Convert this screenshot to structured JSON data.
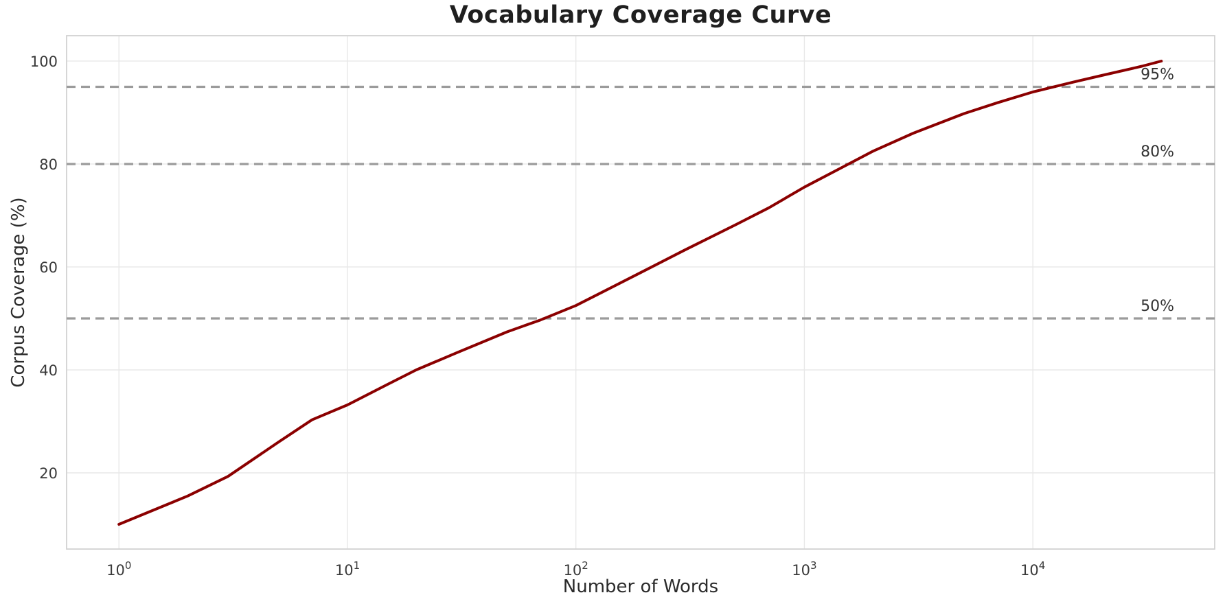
{
  "chart_data": {
    "type": "line",
    "title": "Vocabulary Coverage Curve",
    "xlabel": "Number of Words",
    "ylabel": "Corpus Coverage (%)",
    "x_scale": "log",
    "xlim": [
      0.59,
      62500
    ],
    "ylim": [
      5.2,
      104.93
    ],
    "grid": true,
    "legend": "none",
    "x_ticks": [
      {
        "value": 1,
        "base": "10",
        "exp": "0"
      },
      {
        "value": 10,
        "base": "10",
        "exp": "1"
      },
      {
        "value": 100,
        "base": "10",
        "exp": "2"
      },
      {
        "value": 1000,
        "base": "10",
        "exp": "3"
      },
      {
        "value": 10000,
        "base": "10",
        "exp": "4"
      }
    ],
    "y_ticks": [
      20,
      40,
      60,
      80,
      100
    ],
    "thresholds": [
      {
        "value": 50,
        "label": "50%"
      },
      {
        "value": 80,
        "label": "80%"
      },
      {
        "value": 95,
        "label": "95%"
      }
    ],
    "series": [
      {
        "name": "coverage-curve",
        "color": "#8b0000",
        "points": [
          [
            1,
            10.0
          ],
          [
            2,
            15.5
          ],
          [
            3,
            19.3
          ],
          [
            5,
            26.0
          ],
          [
            7,
            30.3
          ],
          [
            10,
            33.2
          ],
          [
            15,
            37.2
          ],
          [
            20,
            40.0
          ],
          [
            30,
            43.3
          ],
          [
            50,
            47.4
          ],
          [
            70,
            49.7
          ],
          [
            100,
            52.5
          ],
          [
            200,
            59.3
          ],
          [
            300,
            63.3
          ],
          [
            500,
            68.2
          ],
          [
            700,
            71.5
          ],
          [
            1000,
            75.5
          ],
          [
            1500,
            79.6
          ],
          [
            2000,
            82.5
          ],
          [
            3000,
            86.0
          ],
          [
            5000,
            89.8
          ],
          [
            7000,
            91.9
          ],
          [
            10000,
            94.0
          ],
          [
            15000,
            95.9
          ],
          [
            20000,
            97.2
          ],
          [
            30000,
            99.0
          ],
          [
            36500,
            100.0
          ]
        ]
      }
    ],
    "colors": {
      "line": "#8b0000",
      "grid": "#e8e8e8",
      "spine": "#d2d2d2",
      "dashed": "#9b9b9b",
      "plot_bg": "#ffffff"
    }
  }
}
